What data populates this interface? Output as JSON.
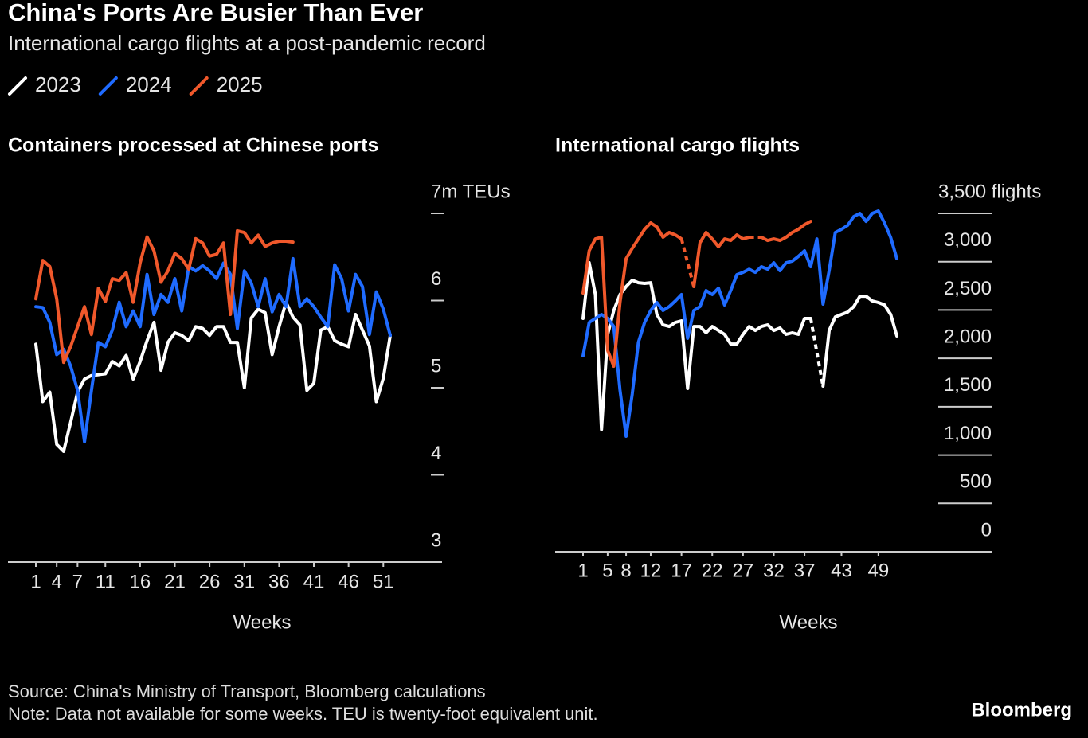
{
  "title": "China's Ports Are Busier Than Ever",
  "subtitle": "International cargo flights at a post-pandemic record",
  "source": "Source: China's Ministry of Transport, Bloomberg calculations",
  "note": "Note: Data not available for some weeks. TEU is twenty-foot equivalent unit.",
  "brand": "Bloomberg",
  "chart_data": [
    {
      "type": "line",
      "title": "Containers processed at Chinese ports",
      "x_label": "Weeks",
      "x": [
        1,
        2,
        3,
        4,
        5,
        6,
        7,
        8,
        9,
        10,
        11,
        12,
        13,
        14,
        15,
        16,
        17,
        18,
        19,
        20,
        21,
        22,
        23,
        24,
        25,
        26,
        27,
        28,
        29,
        30,
        31,
        32,
        33,
        34,
        35,
        36,
        37,
        38,
        39,
        40,
        41,
        42,
        43,
        44,
        45,
        46,
        47,
        48,
        49,
        50,
        51,
        52
      ],
      "xlim": [
        1,
        52
      ],
      "xticks": [
        1,
        4,
        7,
        11,
        16,
        21,
        26,
        31,
        36,
        41,
        46,
        51
      ],
      "ylim": [
        3,
        7
      ],
      "yticks": [
        3,
        4,
        5,
        6,
        {
          "value": 7,
          "label": "7m TEUs"
        }
      ],
      "series": [
        {
          "name": "2023",
          "color": "#ffffff",
          "values": [
            5.5,
            4.84,
            4.95,
            4.35,
            4.27,
            4.6,
            4.95,
            5.1,
            5.14,
            5.15,
            5.16,
            5.3,
            5.25,
            5.37,
            5.1,
            5.3,
            5.54,
            5.75,
            5.2,
            5.52,
            5.63,
            5.6,
            5.54,
            5.7,
            5.68,
            5.6,
            5.7,
            5.7,
            5.52,
            5.52,
            5.0,
            5.8,
            5.9,
            5.86,
            5.38,
            5.7,
            5.98,
            5.81,
            5.72,
            4.97,
            5.05,
            5.66,
            5.7,
            5.54,
            5.5,
            5.47,
            5.84,
            5.66,
            5.48,
            4.84,
            5.11,
            5.6
          ]
        },
        {
          "name": "2024",
          "color": "#1f6bff",
          "values": [
            5.93,
            5.92,
            5.75,
            5.38,
            5.44,
            5.25,
            4.97,
            4.38,
            4.97,
            5.52,
            5.47,
            5.66,
            5.98,
            5.7,
            5.88,
            5.7,
            6.3,
            5.84,
            6.07,
            5.98,
            6.25,
            5.88,
            6.39,
            6.34,
            6.4,
            6.34,
            6.25,
            6.43,
            6.3,
            5.68,
            6.34,
            6.2,
            5.93,
            6.25,
            5.87,
            6.07,
            5.93,
            6.48,
            5.93,
            6.02,
            5.93,
            5.81,
            5.7,
            6.41,
            6.25,
            5.88,
            6.3,
            6.16,
            5.61,
            6.1,
            5.9,
            5.6
          ]
        },
        {
          "name": "2025",
          "color": "#f0582b",
          "values": [
            6.02,
            6.46,
            6.39,
            6.02,
            5.29,
            5.47,
            5.7,
            5.93,
            5.61,
            6.14,
            5.99,
            6.25,
            6.23,
            6.32,
            5.98,
            6.43,
            6.73,
            6.57,
            6.21,
            6.34,
            6.54,
            6.48,
            6.36,
            6.71,
            6.66,
            6.51,
            6.53,
            6.66,
            5.84,
            6.8,
            6.78,
            6.66,
            6.75,
            6.62,
            6.66,
            6.68,
            6.68,
            6.67,
            null,
            null,
            null,
            null,
            null,
            null,
            null,
            null,
            null,
            null,
            null,
            null,
            null,
            null
          ]
        }
      ]
    },
    {
      "type": "line",
      "title": "International cargo flights",
      "x_label": "Weeks",
      "x": [
        1,
        2,
        3,
        4,
        5,
        6,
        7,
        8,
        9,
        10,
        11,
        12,
        13,
        14,
        15,
        16,
        17,
        18,
        19,
        20,
        21,
        22,
        23,
        24,
        25,
        26,
        27,
        28,
        29,
        30,
        31,
        32,
        33,
        34,
        35,
        36,
        37,
        38,
        39,
        40,
        41,
        42,
        43,
        44,
        45,
        46,
        47,
        48,
        49,
        50,
        51,
        52
      ],
      "xlim": [
        1,
        52
      ],
      "xticks": [
        1,
        5,
        8,
        12,
        17,
        22,
        27,
        32,
        37,
        43,
        49
      ],
      "ylim": [
        0,
        3500
      ],
      "yticks": [
        0,
        500,
        {
          "value": 1000,
          "label": "1,000"
        },
        {
          "value": 1500,
          "label": "1,500"
        },
        {
          "value": 2000,
          "label": "2,000"
        },
        {
          "value": 2500,
          "label": "2,500"
        },
        {
          "value": 3000,
          "label": "3,000"
        },
        {
          "value": 3500,
          "label": "3,500 flights"
        }
      ],
      "series": [
        {
          "name": "2023",
          "color": "#ffffff",
          "values": [
            2413,
            2990,
            2660,
            1264,
            2248,
            2495,
            2660,
            2742,
            2808,
            2783,
            2775,
            2783,
            2454,
            2347,
            2330,
            2372,
            2388,
            1688,
            2330,
            2330,
            2265,
            2330,
            2289,
            2248,
            2149,
            2149,
            2248,
            2330,
            2289,
            2330,
            2347,
            2289,
            2314,
            2248,
            2265,
            2248,
            2413,
            2413,
            null,
            1713,
            2289,
            2429,
            2454,
            2479,
            2536,
            2643,
            2643,
            2594,
            2578,
            2553,
            2454,
            2232
          ]
        },
        {
          "name": "2024",
          "color": "#1f6bff",
          "values": [
            2026,
            2372,
            2413,
            2454,
            2413,
            2330,
            1672,
            1194,
            1631,
            2166,
            2372,
            2495,
            2578,
            2495,
            2536,
            2594,
            2660,
            2207,
            2495,
            2536,
            2701,
            2660,
            2726,
            2553,
            2701,
            2866,
            2890,
            2923,
            2890,
            2948,
            2923,
            2989,
            2907,
            2989,
            3006,
            3055,
            3113,
            2948,
            3236,
            2561,
            2907,
            3302,
            3335,
            3376,
            3467,
            3500,
            3417,
            3500,
            3525,
            3401,
            3250,
            3031
          ]
        },
        {
          "name": "2025",
          "color": "#f0582b",
          "values": [
            2676,
            3113,
            3236,
            3253,
            2083,
            1919,
            2578,
            3031,
            3138,
            3236,
            3335,
            3401,
            3360,
            3253,
            3302,
            3277,
            3236,
            null,
            2742,
            3195,
            3302,
            3236,
            3154,
            3236,
            3219,
            3277,
            3236,
            3253,
            null,
            3253,
            3219,
            3236,
            3219,
            3253,
            3302,
            3335,
            3384,
            3417,
            null,
            null,
            null,
            null,
            null,
            null,
            null,
            null,
            null,
            null,
            null,
            null,
            null,
            null
          ]
        }
      ]
    }
  ]
}
